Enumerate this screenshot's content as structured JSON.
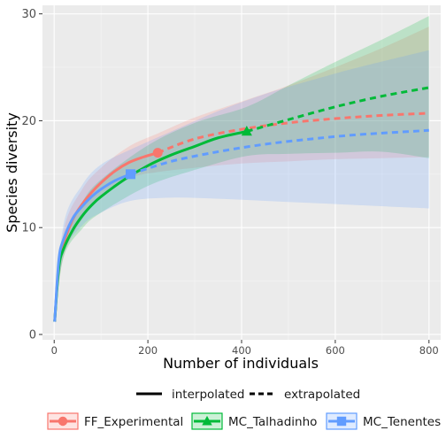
{
  "chart_data": {
    "type": "line",
    "title": "",
    "xlabel": "Number of individuals",
    "ylabel": "Species diversity",
    "xlim": [
      -25,
      825
    ],
    "ylim": [
      -0.5,
      30.8
    ],
    "xticks": [
      0,
      200,
      400,
      600,
      800
    ],
    "yticks": [
      0,
      10,
      20,
      30
    ],
    "grid": true,
    "linetype_legend": {
      "interpolated": "interpolated",
      "extrapolated": "extrapolated"
    },
    "series": [
      {
        "name": "FF_Experimental",
        "color": "#F8766D",
        "marker": "circle",
        "reference": {
          "x": 221,
          "y": 17.0
        },
        "interpolated": [
          [
            1,
            1.2
          ],
          [
            10,
            6.6
          ],
          [
            20,
            8.5
          ],
          [
            40,
            10.8
          ],
          [
            60,
            12.2
          ],
          [
            80,
            13.3
          ],
          [
            100,
            14.2
          ],
          [
            130,
            15.3
          ],
          [
            160,
            16.1
          ],
          [
            190,
            16.6
          ],
          [
            221,
            17.0
          ]
        ],
        "extrapolated": [
          [
            221,
            17.0
          ],
          [
            300,
            18.3
          ],
          [
            400,
            19.2
          ],
          [
            500,
            19.8
          ],
          [
            600,
            20.2
          ],
          [
            700,
            20.5
          ],
          [
            800,
            20.7
          ]
        ],
        "ci_upper": [
          [
            1,
            1.2
          ],
          [
            20,
            9.7
          ],
          [
            60,
            13.6
          ],
          [
            100,
            15.6
          ],
          [
            160,
            17.6
          ],
          [
            221,
            18.8
          ],
          [
            300,
            20.3
          ],
          [
            400,
            21.8
          ],
          [
            500,
            23.3
          ],
          [
            600,
            25.0
          ],
          [
            700,
            26.8
          ],
          [
            800,
            28.8
          ]
        ],
        "ci_lower": [
          [
            1,
            1.2
          ],
          [
            20,
            7.3
          ],
          [
            60,
            10.8
          ],
          [
            100,
            12.8
          ],
          [
            160,
            14.6
          ],
          [
            221,
            15.2
          ],
          [
            300,
            15.6
          ],
          [
            400,
            16.0
          ],
          [
            500,
            16.2
          ],
          [
            600,
            16.4
          ],
          [
            700,
            16.5
          ],
          [
            800,
            16.6
          ]
        ]
      },
      {
        "name": "MC_Talhadinho",
        "color": "#00BA38",
        "marker": "triangle",
        "reference": {
          "x": 411,
          "y": 19.0
        },
        "interpolated": [
          [
            1,
            1.2
          ],
          [
            10,
            6.3
          ],
          [
            20,
            8.0
          ],
          [
            40,
            9.8
          ],
          [
            60,
            11.1
          ],
          [
            80,
            12.1
          ],
          [
            100,
            12.9
          ],
          [
            150,
            14.5
          ],
          [
            200,
            15.8
          ],
          [
            250,
            16.8
          ],
          [
            300,
            17.6
          ],
          [
            350,
            18.4
          ],
          [
            411,
            19.0
          ]
        ],
        "extrapolated": [
          [
            411,
            19.0
          ],
          [
            500,
            20.1
          ],
          [
            600,
            21.3
          ],
          [
            700,
            22.3
          ],
          [
            800,
            23.1
          ]
        ],
        "ci_upper": [
          [
            1,
            1.2
          ],
          [
            20,
            8.8
          ],
          [
            60,
            12.4
          ],
          [
            100,
            14.5
          ],
          [
            200,
            17.7
          ],
          [
            300,
            19.8
          ],
          [
            411,
            21.3
          ],
          [
            500,
            23.3
          ],
          [
            600,
            25.5
          ],
          [
            700,
            27.6
          ],
          [
            800,
            29.8
          ]
        ],
        "ci_lower": [
          [
            1,
            1.2
          ],
          [
            20,
            7.2
          ],
          [
            60,
            9.9
          ],
          [
            100,
            11.4
          ],
          [
            200,
            13.9
          ],
          [
            300,
            15.4
          ],
          [
            411,
            16.7
          ],
          [
            500,
            16.9
          ],
          [
            600,
            17.0
          ],
          [
            700,
            17.1
          ],
          [
            800,
            16.5
          ]
        ]
      },
      {
        "name": "MC_Tenentes",
        "color": "#619CFF",
        "marker": "square",
        "reference": {
          "x": 163,
          "y": 15.0
        },
        "interpolated": [
          [
            1,
            1.2
          ],
          [
            10,
            7.0
          ],
          [
            20,
            8.9
          ],
          [
            40,
            10.9
          ],
          [
            60,
            12.0
          ],
          [
            80,
            12.9
          ],
          [
            100,
            13.6
          ],
          [
            130,
            14.4
          ],
          [
            163,
            15.0
          ]
        ],
        "extrapolated": [
          [
            163,
            15.0
          ],
          [
            250,
            16.2
          ],
          [
            350,
            17.1
          ],
          [
            450,
            17.8
          ],
          [
            550,
            18.3
          ],
          [
            650,
            18.7
          ],
          [
            800,
            19.1
          ]
        ],
        "ci_upper": [
          [
            1,
            1.2
          ],
          [
            20,
            10.3
          ],
          [
            60,
            14.0
          ],
          [
            100,
            15.9
          ],
          [
            163,
            17.3
          ],
          [
            250,
            19.0
          ],
          [
            350,
            20.9
          ],
          [
            450,
            22.5
          ],
          [
            550,
            23.8
          ],
          [
            650,
            25.0
          ],
          [
            800,
            26.6
          ]
        ],
        "ci_lower": [
          [
            1,
            1.2
          ],
          [
            20,
            7.5
          ],
          [
            60,
            10.2
          ],
          [
            100,
            11.4
          ],
          [
            163,
            12.5
          ],
          [
            250,
            12.8
          ],
          [
            350,
            12.7
          ],
          [
            450,
            12.5
          ],
          [
            550,
            12.3
          ],
          [
            650,
            12.1
          ],
          [
            800,
            11.8
          ]
        ]
      }
    ]
  }
}
